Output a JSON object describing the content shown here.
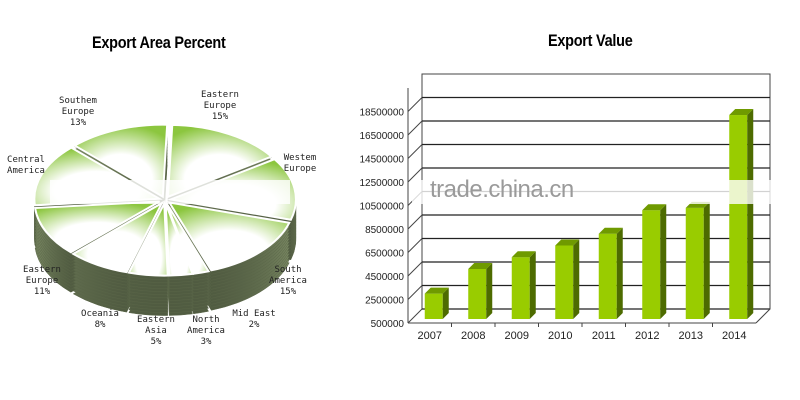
{
  "chart_data": [
    {
      "type": "pie",
      "title": "Export Area  Percent",
      "style": "3d-exploded",
      "slices": [
        {
          "label": "Eastern\nEurope",
          "value": 15,
          "pct_label": "15%"
        },
        {
          "label": "Westem\nEurope",
          "value": null,
          "pct_label": ""
        },
        {
          "label": "South\nAmerica",
          "value": 15,
          "pct_label": "15%"
        },
        {
          "label": "Mid East",
          "value": 2,
          "pct_label": "2%"
        },
        {
          "label": "North\nAmerica",
          "value": 3,
          "pct_label": "3%"
        },
        {
          "label": "Eastern\nAsia",
          "value": 5,
          "pct_label": "5%"
        },
        {
          "label": "Oceania",
          "value": 8,
          "pct_label": "8%"
        },
        {
          "label": "Eastern\nEurope",
          "value": 11,
          "pct_label": "11%"
        },
        {
          "label": "Central\nAmerica",
          "value": null,
          "pct_label": ""
        },
        {
          "label": "Southem\nEurope",
          "value": 13,
          "pct_label": "13%"
        }
      ],
      "colors": {
        "top_light": "#ffffff",
        "top_green": "#8cc63f",
        "side": "#6b7a5a"
      }
    },
    {
      "type": "bar",
      "style": "3d",
      "title": "Export Value",
      "xlabel": "",
      "ylabel": "",
      "categories": [
        "2007",
        "2008",
        "2009",
        "2010",
        "2011",
        "2012",
        "2013",
        "2014"
      ],
      "values": [
        3000000,
        5100000,
        6100000,
        7100000,
        8100000,
        10100000,
        10300000,
        18200000
      ],
      "yticks": [
        "500000",
        "2500000",
        "4500000",
        "6500000",
        "8500000",
        "10500000",
        "12500000",
        "14500000",
        "16500000",
        "18500000"
      ],
      "ylim": [
        500000,
        20500000
      ],
      "grid": true,
      "colors": {
        "bar_front": "#99cc00",
        "bar_side": "#4d6b00",
        "bar_top": "#6f9a00"
      }
    }
  ],
  "watermark": "trade.china.cn"
}
